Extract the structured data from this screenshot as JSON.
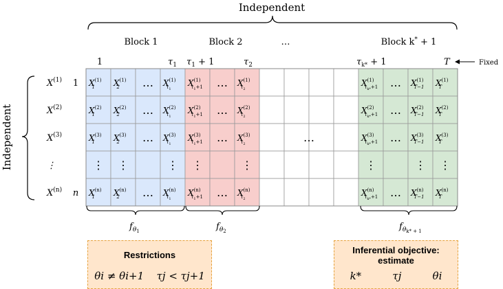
{
  "top_brace_label": "Independent",
  "side_brace_label": "Independent",
  "fixed_label": "Fixed",
  "block_labels": [
    {
      "text": "Block 1"
    },
    {
      "text": "Block 2"
    },
    {
      "text": "…"
    },
    {
      "text": "Block k* + 1",
      "base": "Block k",
      "sup": "*",
      "tail": " + 1"
    }
  ],
  "time_labels": [
    {
      "text": "1"
    },
    {
      "text": "τ1",
      "base": "τ",
      "sub": "1"
    },
    {
      "text": "τ1 + 1",
      "base": "τ",
      "sub": "1",
      "tail": " + 1"
    },
    {
      "text": "τ2",
      "base": "τ",
      "sub": "2"
    },
    {
      "text": "τk* + 1",
      "base": "τ",
      "sub": "k*",
      "tail": " + 1"
    },
    {
      "text": "T",
      "base": "T"
    }
  ],
  "row_labels": [
    {
      "base": "X",
      "sup": "(1)",
      "index": "1"
    },
    {
      "base": "X",
      "sup": "(2)",
      "index": ""
    },
    {
      "base": "X",
      "sup": "(3)",
      "index": ""
    },
    {
      "base": "⋮",
      "sup": "",
      "index": ""
    },
    {
      "base": "X",
      "sup": "(n)",
      "index": "n"
    }
  ],
  "grid": {
    "columns": [
      {
        "block": "1",
        "color": "#dae8fc",
        "sub": "1",
        "subsub": ""
      },
      {
        "block": "1",
        "color": "#dae8fc",
        "sub": "2",
        "subsub": ""
      },
      {
        "block": "1",
        "color": "#dae8fc",
        "sub": "",
        "subsub": "",
        "ellipsis": true
      },
      {
        "block": "1",
        "color": "#dae8fc",
        "sub": "τ",
        "subsub": "1"
      },
      {
        "block": "2",
        "color": "#f8cecc",
        "sub": "τ",
        "subsub": "1",
        "plus": "+1"
      },
      {
        "block": "2",
        "color": "#f8cecc",
        "sub": "",
        "subsub": "",
        "ellipsis": true
      },
      {
        "block": "2",
        "color": "#f8cecc",
        "sub": "τ",
        "subsub": "2"
      },
      {
        "block": "gap",
        "color": "#ffffff"
      },
      {
        "block": "gap",
        "color": "#ffffff"
      },
      {
        "block": "gap",
        "color": "#ffffff"
      },
      {
        "block": "gap",
        "color": "#ffffff"
      },
      {
        "block": "k+1",
        "color": "#d5e8d4",
        "sub": "τ",
        "subsub": "k*",
        "plus": "+1"
      },
      {
        "block": "k+1",
        "color": "#d5e8d4",
        "sub": "",
        "subsub": "",
        "ellipsis": true
      },
      {
        "block": "k+1",
        "color": "#d5e8d4",
        "sub": "T−1",
        "subsub": ""
      },
      {
        "block": "k+1",
        "color": "#d5e8d4",
        "sub": "T",
        "subsub": ""
      }
    ],
    "row_sups": [
      "(1)",
      "(2)",
      "(3)",
      "",
      "(n)"
    ],
    "middle_ellipsis": "…"
  },
  "density_labels": [
    {
      "base": "f",
      "sub": "θ",
      "subsub": "1"
    },
    {
      "base": "f",
      "sub": "θ",
      "subsub": "2"
    },
    {
      "base": "f",
      "sub": "θ",
      "subsub": "k* + 1"
    }
  ],
  "restrictions_box": {
    "title": "Restrictions",
    "items": [
      "θi ≠ θi+1",
      "τj < τj+1"
    ]
  },
  "objective_box": {
    "title": "Inferential objective: estimate",
    "title_line1": "Inferential objective:",
    "title_line2": "estimate",
    "items": [
      "k*",
      "τj",
      "θi"
    ]
  },
  "colors": {
    "block1": "#dae8fc",
    "block2": "#f8cecc",
    "block_last": "#d5e8d4",
    "box_fill": "#ffe6cc",
    "box_border": "#e6a23c",
    "grid_line": "#999999"
  }
}
